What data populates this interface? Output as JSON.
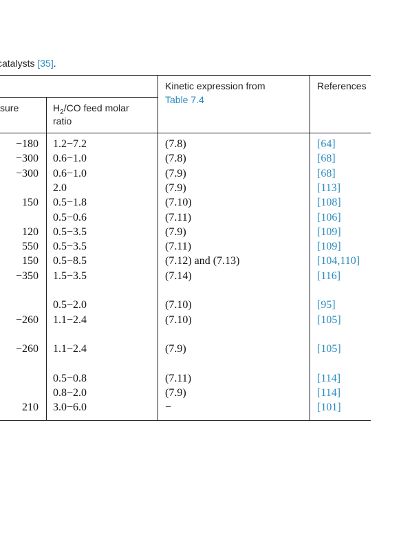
{
  "caption": {
    "text": "catalysts",
    "ref": "[35]",
    "end": "."
  },
  "table": {
    "header": {
      "pressure": "sure",
      "ratio": {
        "pre": "H",
        "sub": "2",
        "post": "/CO feed molar",
        "line2": "ratio"
      },
      "kinetic": {
        "text": "Kinetic expression from",
        "link": "Table 7.4"
      },
      "references": "References"
    },
    "row_groups": [
      [
        [
          "−180",
          "1.2−7.2",
          "(7.8)",
          "[64]"
        ],
        [
          "−300",
          "0.6−1.0",
          "(7.8)",
          "[68]"
        ],
        [
          "−300",
          "0.6−1.0",
          "(7.9)",
          "[68]"
        ],
        [
          null,
          "2.0",
          "(7.9)",
          "[113]"
        ],
        [
          "150",
          "0.5−1.8",
          "(7.10)",
          "[108]"
        ],
        [
          null,
          "0.5−0.6",
          "(7.11)",
          "[106]"
        ],
        [
          "120",
          "0.5−3.5",
          "(7.9)",
          "[109]"
        ],
        [
          "550",
          "0.5−3.5",
          "(7.11)",
          "[109]"
        ],
        [
          "150",
          "0.5−8.5",
          "(7.12) and (7.13)",
          "[104,110]"
        ],
        [
          "−350",
          "1.5−3.5",
          "(7.14)",
          "[116]"
        ]
      ],
      [
        [
          null,
          "0.5−2.0",
          "(7.10)",
          "[95]"
        ],
        [
          "−260",
          "1.1−2.4",
          "(7.10)",
          "[105]"
        ]
      ],
      [
        [
          "−260",
          "1.1−2.4",
          "(7.9)",
          "[105]"
        ]
      ],
      [
        [
          null,
          "0.5−0.8",
          "(7.11)",
          "[114]"
        ],
        [
          null,
          "0.8−2.0",
          "(7.9)",
          "[114]"
        ],
        [
          "210",
          "3.0−6.0",
          "−",
          "[101]"
        ]
      ]
    ]
  }
}
